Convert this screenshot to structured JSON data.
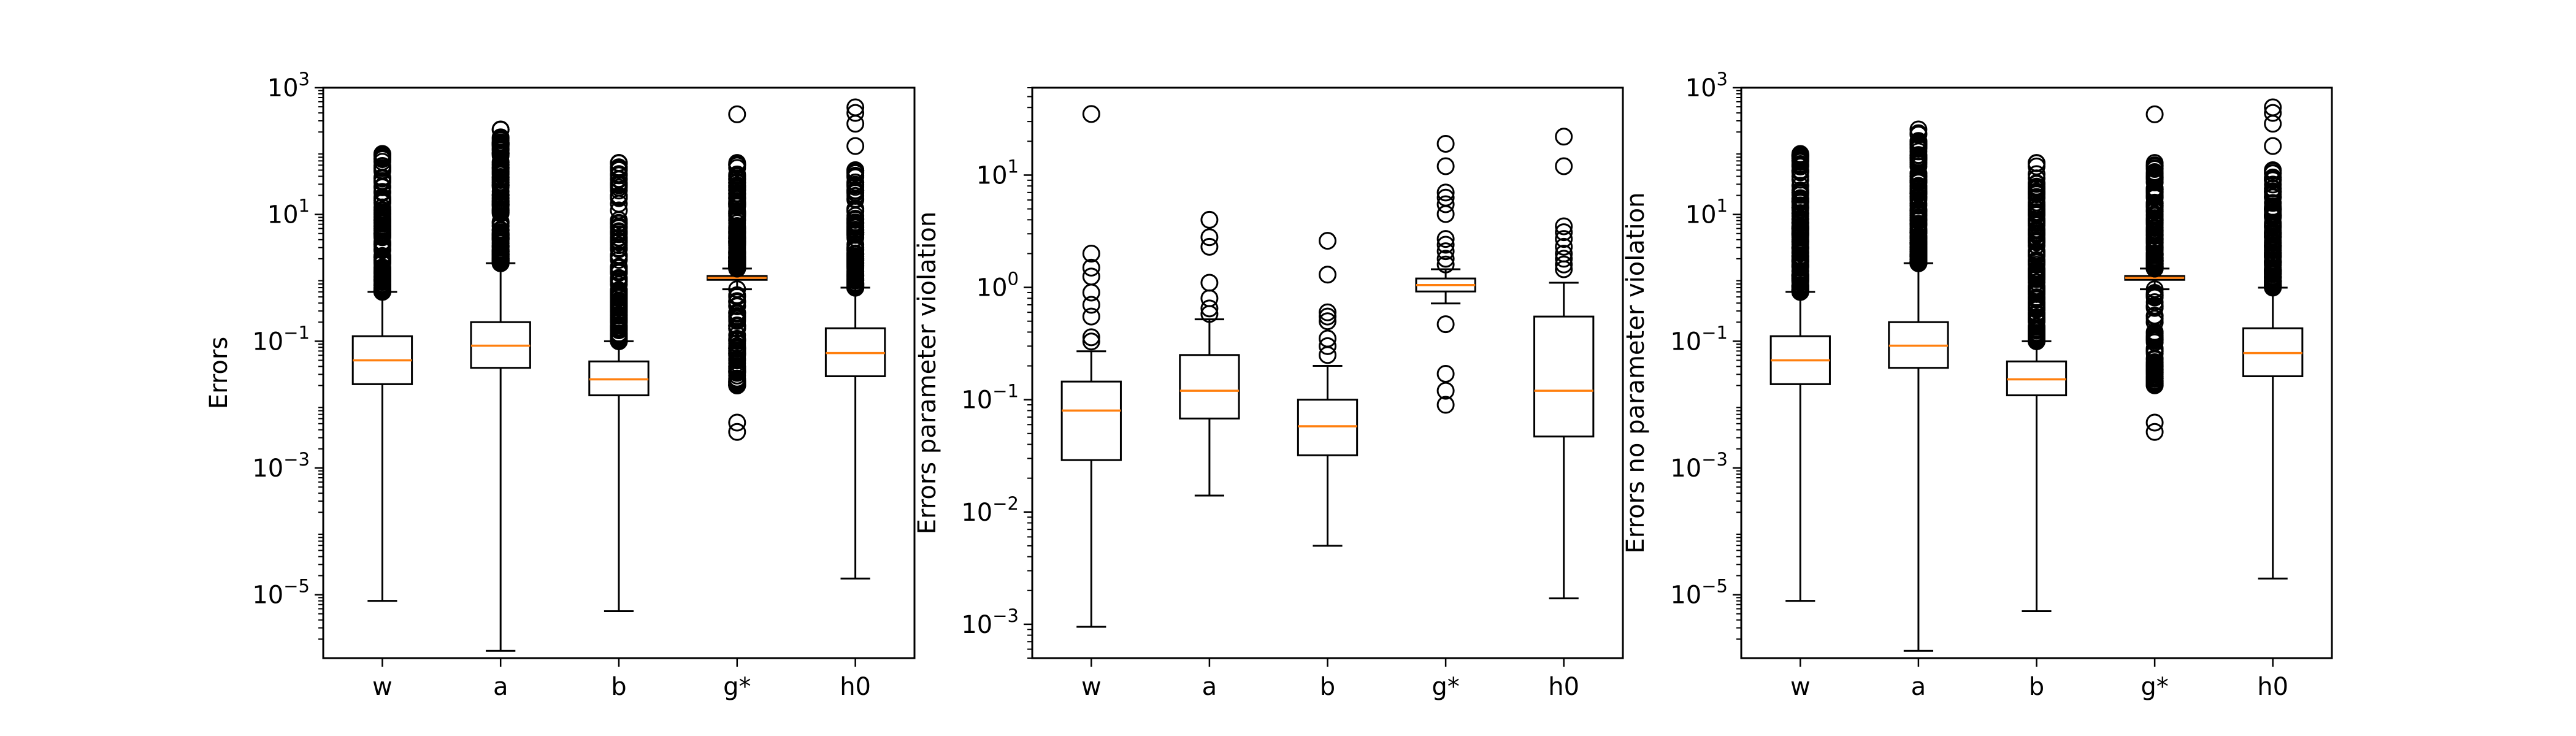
{
  "colors": {
    "box": "#000000",
    "median": "#ff7f0e",
    "flier": "#000000",
    "background": "#ffffff"
  },
  "chart_data": [
    {
      "type": "boxplot",
      "title": "",
      "xlabel": "",
      "ylabel": "Errors",
      "yscale": "log",
      "ylim": [
        1e-06,
        1000.0
      ],
      "yticks": [
        {
          "value": 1e-05,
          "base": "10",
          "exp": "−5"
        },
        {
          "value": 0.001,
          "base": "10",
          "exp": "−3"
        },
        {
          "value": 0.1,
          "base": "10",
          "exp": "−1"
        },
        {
          "value": 10.0,
          "base": "10",
          "exp": "1"
        },
        {
          "value": 1000.0,
          "base": "10",
          "exp": "3"
        }
      ],
      "categories": [
        "w",
        "a",
        "b",
        "g*",
        "h0"
      ],
      "boxes": [
        {
          "whislo": 8e-06,
          "q1": 0.021,
          "med": 0.05,
          "q3": 0.12,
          "whishi": 0.6,
          "fliers_range": [
            0.6,
            90
          ],
          "fliers_sample": []
        },
        {
          "whislo": 1.3e-06,
          "q1": 0.038,
          "med": 0.085,
          "q3": 0.2,
          "whishi": 1.7,
          "fliers_range": [
            1.7,
            220
          ],
          "fliers_sample": []
        },
        {
          "whislo": 5.5e-06,
          "q1": 0.014,
          "med": 0.025,
          "q3": 0.048,
          "whishi": 0.1,
          "fliers_range": [
            0.1,
            65
          ],
          "fliers_sample": []
        },
        {
          "whislo": 0.66,
          "q1": 0.93,
          "med": 1.0,
          "q3": 1.07,
          "whishi": 1.4,
          "fliers_range": [
            1.4,
            65
          ],
          "fliers_low_range": [
            0.02,
            0.66
          ],
          "fliers_sample": [
            0.0037,
            0.0052,
            380
          ]
        },
        {
          "whislo": 1.8e-05,
          "q1": 0.028,
          "med": 0.065,
          "q3": 0.16,
          "whishi": 0.7,
          "fliers_range": [
            0.7,
            50
          ],
          "fliers_sample": [
            120,
            270,
            400,
            490
          ]
        }
      ]
    },
    {
      "type": "boxplot",
      "title": "",
      "xlabel": "",
      "ylabel": "Errors parameter violation",
      "yscale": "log",
      "ylim": [
        0.0005,
        60
      ],
      "yticks": [
        {
          "value": 0.001,
          "base": "10",
          "exp": "−3"
        },
        {
          "value": 0.01,
          "base": "10",
          "exp": "−2"
        },
        {
          "value": 0.1,
          "base": "10",
          "exp": "−1"
        },
        {
          "value": 1,
          "base": "10",
          "exp": "0"
        },
        {
          "value": 10,
          "base": "10",
          "exp": "1"
        }
      ],
      "categories": [
        "w",
        "a",
        "b",
        "g*",
        "h0"
      ],
      "boxes": [
        {
          "whislo": 0.00095,
          "q1": 0.029,
          "med": 0.08,
          "q3": 0.145,
          "whishi": 0.27,
          "fliers_sample": [
            0.33,
            0.36,
            0.55,
            0.7,
            0.9,
            1.25,
            1.5,
            2.0,
            35
          ]
        },
        {
          "whislo": 0.014,
          "q1": 0.068,
          "med": 0.12,
          "q3": 0.25,
          "whishi": 0.52,
          "fliers_sample": [
            0.58,
            0.65,
            0.8,
            1.1,
            2.3,
            2.8,
            4.0
          ]
        },
        {
          "whislo": 0.005,
          "q1": 0.032,
          "med": 0.058,
          "q3": 0.1,
          "whishi": 0.2,
          "fliers_sample": [
            0.25,
            0.3,
            0.35,
            0.5,
            0.55,
            0.6,
            1.3,
            2.6
          ]
        },
        {
          "whislo": 0.72,
          "q1": 0.92,
          "med": 1.05,
          "q3": 1.2,
          "whishi": 1.45,
          "fliers_sample": [
            0.09,
            0.12,
            0.17,
            0.47,
            1.6,
            1.8,
            2.1,
            2.4,
            2.7,
            4.5,
            5.5,
            6.3,
            7.0,
            12,
            19
          ]
        },
        {
          "whislo": 0.0017,
          "q1": 0.047,
          "med": 0.12,
          "q3": 0.55,
          "whishi": 1.1,
          "fliers_sample": [
            1.45,
            1.6,
            1.8,
            2.0,
            2.3,
            2.7,
            3.1,
            3.5,
            12,
            22
          ]
        }
      ]
    },
    {
      "type": "boxplot",
      "title": "",
      "xlabel": "",
      "ylabel": "Errors no parameter violation",
      "yscale": "log",
      "ylim": [
        1e-06,
        1000.0
      ],
      "yticks": [
        {
          "value": 1e-05,
          "base": "10",
          "exp": "−5"
        },
        {
          "value": 0.001,
          "base": "10",
          "exp": "−3"
        },
        {
          "value": 0.1,
          "base": "10",
          "exp": "−1"
        },
        {
          "value": 10.0,
          "base": "10",
          "exp": "1"
        },
        {
          "value": 1000.0,
          "base": "10",
          "exp": "3"
        }
      ],
      "categories": [
        "w",
        "a",
        "b",
        "g*",
        "h0"
      ],
      "boxes": [
        {
          "whislo": 8e-06,
          "q1": 0.021,
          "med": 0.05,
          "q3": 0.12,
          "whishi": 0.6,
          "fliers_range": [
            0.6,
            90
          ],
          "fliers_sample": []
        },
        {
          "whislo": 1.3e-06,
          "q1": 0.038,
          "med": 0.085,
          "q3": 0.2,
          "whishi": 1.7,
          "fliers_range": [
            1.7,
            220
          ],
          "fliers_sample": []
        },
        {
          "whislo": 5.5e-06,
          "q1": 0.014,
          "med": 0.025,
          "q3": 0.048,
          "whishi": 0.1,
          "fliers_range": [
            0.1,
            65
          ],
          "fliers_sample": []
        },
        {
          "whislo": 0.66,
          "q1": 0.93,
          "med": 1.0,
          "q3": 1.07,
          "whishi": 1.4,
          "fliers_range": [
            1.4,
            65
          ],
          "fliers_low_range": [
            0.02,
            0.66
          ],
          "fliers_sample": [
            0.0037,
            0.0052,
            380
          ]
        },
        {
          "whislo": 1.8e-05,
          "q1": 0.028,
          "med": 0.065,
          "q3": 0.16,
          "whishi": 0.7,
          "fliers_range": [
            0.7,
            50
          ],
          "fliers_sample": [
            120,
            270,
            400,
            490
          ]
        }
      ]
    }
  ]
}
